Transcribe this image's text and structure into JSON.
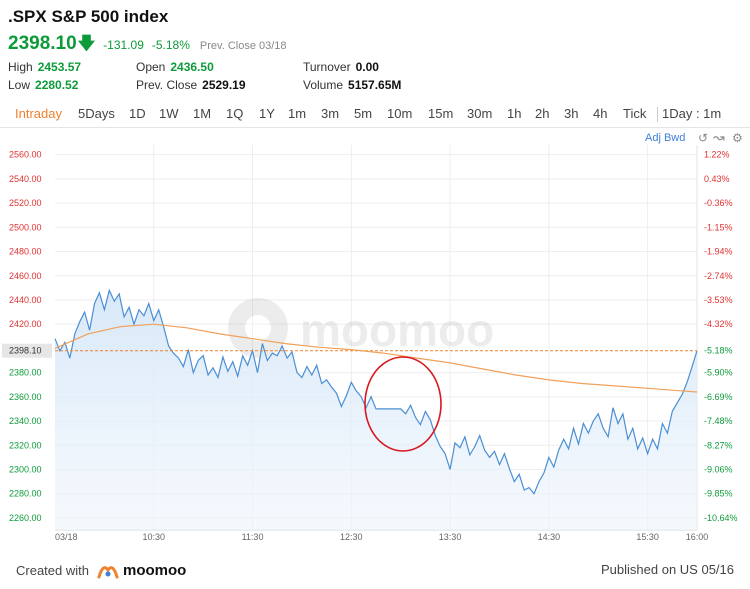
{
  "header": {
    "title": ".SPX S&P 500 index",
    "price": "2398.10",
    "change": "-131.09",
    "change_pct": "-5.18%",
    "prev_close_label": "Prev. Close 03/18",
    "direction_icon": "down-arrow-icon"
  },
  "stats": {
    "high_label": "High",
    "high_value": "2453.57",
    "low_label": "Low",
    "low_value": "2280.52",
    "open_label": "Open",
    "open_value": "2436.50",
    "prevclose_label": "Prev. Close",
    "prevclose_value": "2529.19",
    "turnover_label": "Turnover",
    "turnover_value": "0.00",
    "volume_label": "Volume",
    "volume_value": "5157.65M"
  },
  "tabs": [
    "Intraday",
    "5Days",
    "1D",
    "1W",
    "1M",
    "1Q",
    "1Y",
    "1m",
    "3m",
    "5m",
    "10m",
    "15m",
    "30m",
    "1h",
    "2h",
    "3h",
    "4h",
    "Tick",
    "1Day : 1m"
  ],
  "active_tab": "Intraday",
  "toolbar": {
    "adj_label": "Adj Bwd"
  },
  "chart_data": {
    "type": "line",
    "y_ticks": [
      "2560.00",
      "2540.00",
      "2520.00",
      "2500.00",
      "2480.00",
      "2460.00",
      "2440.00",
      "2420.00",
      "2398.10",
      "2380.00",
      "2360.00",
      "2340.00",
      "2320.00",
      "2300.00",
      "2280.00",
      "2260.00"
    ],
    "y_tick_values": [
      2560,
      2540,
      2520,
      2500,
      2480,
      2460,
      2440,
      2420,
      2398.1,
      2380,
      2360,
      2340,
      2320,
      2300,
      2280,
      2260
    ],
    "pct_ticks": [
      "1.22%",
      "0.43%",
      "-0.36%",
      "-1.15%",
      "-1.94%",
      "-2.74%",
      "-3.53%",
      "-4.32%",
      "-5.18%",
      "-5.90%",
      "-6.69%",
      "-7.48%",
      "-8.27%",
      "-9.06%",
      "-9.85%",
      "-10.64%"
    ],
    "x_ticks": [
      "03/18",
      "10:30",
      "11:30",
      "12:30",
      "13:30",
      "14:30",
      "15:30",
      "16:00"
    ],
    "x_tick_minutes": [
      0,
      60,
      120,
      180,
      240,
      300,
      360,
      390
    ],
    "ylim": [
      2250,
      2568
    ],
    "reference_line": 2398.1,
    "series": [
      {
        "key": "price",
        "color": "#4a8fd4",
        "x": [
          0,
          3,
          6,
          9,
          12,
          15,
          18,
          21,
          24,
          27,
          30,
          33,
          36,
          39,
          42,
          45,
          48,
          51,
          54,
          57,
          60,
          63,
          66,
          69,
          72,
          75,
          78,
          81,
          84,
          87,
          90,
          93,
          96,
          99,
          102,
          105,
          108,
          111,
          114,
          117,
          120,
          123,
          126,
          129,
          132,
          135,
          138,
          141,
          144,
          147,
          150,
          153,
          156,
          159,
          162,
          165,
          168,
          171,
          174,
          177,
          180,
          183,
          186,
          189,
          192,
          195,
          198,
          201,
          204,
          207,
          210,
          213,
          216,
          219,
          222,
          225,
          228,
          231,
          234,
          237,
          240,
          243,
          246,
          249,
          252,
          255,
          258,
          261,
          264,
          267,
          270,
          273,
          276,
          279,
          282,
          285,
          288,
          291,
          294,
          297,
          300,
          303,
          306,
          309,
          312,
          315,
          318,
          321,
          324,
          327,
          330,
          333,
          336,
          339,
          342,
          345,
          348,
          351,
          354,
          357,
          360,
          363,
          366,
          369,
          372,
          375,
          378,
          381,
          384,
          387,
          390
        ],
        "y": [
          2408,
          2398,
          2405,
          2392,
          2412,
          2422,
          2430,
          2415,
          2437,
          2446,
          2432,
          2448,
          2439,
          2445,
          2426,
          2434,
          2420,
          2432,
          2427,
          2437,
          2423,
          2432,
          2418,
          2402,
          2396,
          2392,
          2385,
          2399,
          2380,
          2390,
          2394,
          2378,
          2384,
          2376,
          2393,
          2381,
          2389,
          2377,
          2394,
          2386,
          2398,
          2380,
          2404,
          2390,
          2396,
          2394,
          2402,
          2392,
          2397,
          2380,
          2376,
          2385,
          2378,
          2386,
          2371,
          2374,
          2368,
          2363,
          2352,
          2361,
          2372,
          2365,
          2360,
          2351,
          2360,
          2350,
          2350,
          2350,
          2350,
          2350,
          2350,
          2346,
          2353,
          2343,
          2337,
          2348,
          2341,
          2328,
          2319,
          2313,
          2300,
          2322,
          2318,
          2327,
          2312,
          2319,
          2328,
          2316,
          2310,
          2315,
          2304,
          2313,
          2301,
          2290,
          2296,
          2283,
          2285,
          2280,
          2290,
          2297,
          2310,
          2302,
          2316,
          2325,
          2317,
          2334,
          2321,
          2338,
          2330,
          2340,
          2346,
          2334,
          2327,
          2351,
          2338,
          2346,
          2325,
          2334,
          2317,
          2326,
          2313,
          2325,
          2317,
          2338,
          2330,
          2348,
          2355,
          2362,
          2372,
          2385,
          2398
        ]
      },
      {
        "key": "average",
        "color": "#f0a05a",
        "x": [
          0,
          20,
          40,
          60,
          80,
          100,
          120,
          140,
          160,
          180,
          200,
          220,
          240,
          260,
          280,
          300,
          320,
          340,
          360,
          380,
          390
        ],
        "y": [
          2400,
          2412,
          2418,
          2420,
          2417,
          2412,
          2408,
          2404,
          2401,
          2399,
          2396,
          2392,
          2388,
          2383,
          2378,
          2374,
          2371,
          2369,
          2367,
          2365,
          2364
        ]
      }
    ]
  },
  "footer": {
    "created_with": "Created with",
    "brand": "moomoo",
    "published": "Published on US 05/16"
  }
}
